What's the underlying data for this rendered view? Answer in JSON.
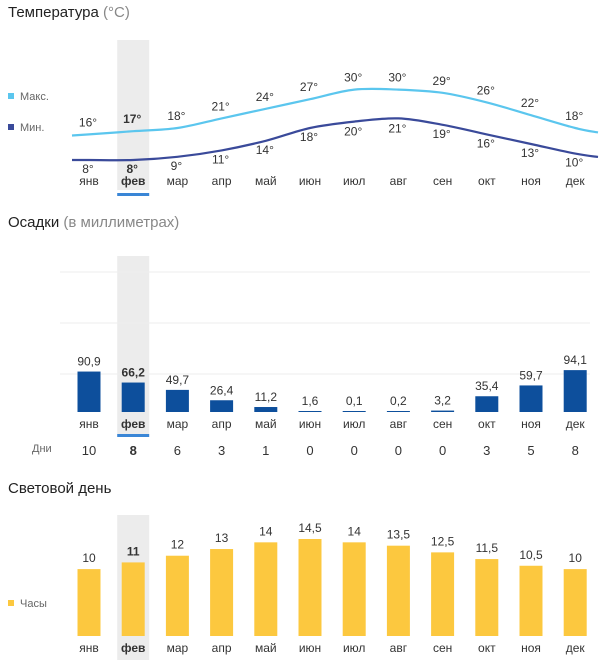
{
  "months": [
    "янв",
    "фев",
    "мар",
    "апр",
    "май",
    "июн",
    "июл",
    "авг",
    "сен",
    "окт",
    "ноя",
    "дек"
  ],
  "selected_index": 1,
  "colors": {
    "max_line": "#5bc6ee",
    "min_line": "#3a4a9a",
    "precip_bar": "#0d4f9c",
    "daylight_bar": "#fcc83f",
    "highlight": "#ececec",
    "selected_underline": "#3a86d6"
  },
  "temperature": {
    "title": "Температура",
    "unit": "(°C)",
    "legend_max": "Макс.",
    "legend_min": "Мин."
  },
  "precipitation": {
    "title": "Осадки",
    "unit": "(в миллиметрах)",
    "days_label": "Дни"
  },
  "daylight": {
    "title": "Световой день",
    "legend": "Часы"
  },
  "chart_data": [
    {
      "type": "line",
      "title": "Температура (°C)",
      "categories": [
        "янв",
        "фев",
        "мар",
        "апр",
        "май",
        "июн",
        "июл",
        "авг",
        "сен",
        "окт",
        "ноя",
        "дек"
      ],
      "series": [
        {
          "name": "Макс.",
          "values": [
            16,
            17,
            18,
            21,
            24,
            27,
            30,
            30,
            29,
            26,
            22,
            18
          ],
          "labels": [
            "16°",
            "17°",
            "18°",
            "21°",
            "24°",
            "27°",
            "30°",
            "30°",
            "29°",
            "26°",
            "22°",
            "18°"
          ]
        },
        {
          "name": "Мин.",
          "values": [
            8,
            8,
            9,
            11,
            14,
            18,
            20,
            21,
            19,
            16,
            13,
            10
          ],
          "labels": [
            "8°",
            "8°",
            "9°",
            "11°",
            "14°",
            "18°",
            "20°",
            "21°",
            "19°",
            "16°",
            "13°",
            "10°"
          ]
        }
      ]
    },
    {
      "type": "bar",
      "title": "Осадки (в миллиметрах)",
      "categories": [
        "янв",
        "фев",
        "мар",
        "апр",
        "май",
        "июн",
        "июл",
        "авг",
        "сен",
        "окт",
        "ноя",
        "дек"
      ],
      "values": [
        90.9,
        66.2,
        49.7,
        26.4,
        11.2,
        1.6,
        0.1,
        0.2,
        3.2,
        35.4,
        59.7,
        94.1
      ],
      "labels": [
        "90,9",
        "66,2",
        "49,7",
        "26,4",
        "11,2",
        "1,6",
        "0,1",
        "0,2",
        "3,2",
        "35,4",
        "59,7",
        "94,1"
      ],
      "days": [
        10,
        8,
        6,
        3,
        1,
        0,
        0,
        0,
        0,
        3,
        5,
        8
      ]
    },
    {
      "type": "bar",
      "title": "Световой день",
      "series": [
        {
          "name": "Часы",
          "values": [
            10,
            11,
            12,
            13,
            14,
            14.5,
            14,
            13.5,
            12.5,
            11.5,
            10.5,
            10
          ],
          "labels": [
            "10",
            "11",
            "12",
            "13",
            "14",
            "14,5",
            "14",
            "13,5",
            "12,5",
            "11,5",
            "10,5",
            "10"
          ]
        }
      ],
      "categories": [
        "янв",
        "фев",
        "мар",
        "апр",
        "май",
        "июн",
        "июл",
        "авг",
        "сен",
        "окт",
        "ноя",
        "дек"
      ]
    }
  ]
}
